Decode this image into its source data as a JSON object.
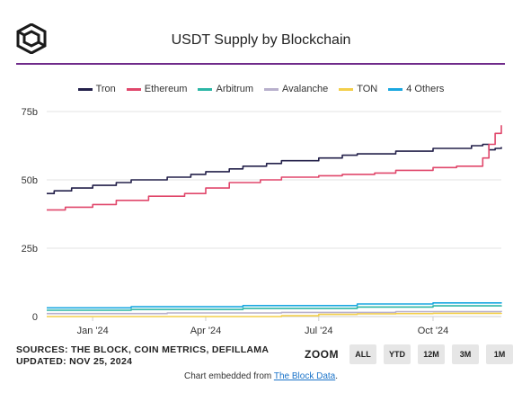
{
  "header": {
    "title": "USDT Supply by Blockchain"
  },
  "sources": {
    "line1": "SOURCES: THE BLOCK, COIN METRICS, DEFILLAMA",
    "line2": "UPDATED: NOV 25, 2024"
  },
  "zoom": {
    "label": "ZOOM",
    "buttons": [
      "ALL",
      "YTD",
      "12M",
      "3M",
      "1M"
    ]
  },
  "footer": {
    "prefix": "Chart embedded from ",
    "link": "The Block Data",
    "suffix": "."
  },
  "chart_data": {
    "type": "line",
    "title": "USDT Supply by Blockchain",
    "xlabel": "",
    "ylabel": "",
    "y_ticks": [
      "0",
      "25b",
      "50b",
      "75b"
    ],
    "y_tick_values": [
      0,
      25,
      50,
      75
    ],
    "ylim": [
      0,
      75
    ],
    "x_ticks": [
      "Jan '24",
      "Apr '24",
      "Jul '24",
      "Oct '24"
    ],
    "x_tick_dates": [
      "2024-01-01",
      "2024-04-01",
      "2024-07-01",
      "2024-10-01"
    ],
    "xlim": [
      "2023-11-25",
      "2024-11-25"
    ],
    "grid": "horizontal",
    "legend_position": "top",
    "series": [
      {
        "name": "Tron",
        "color": "#23204a",
        "x": [
          "2023-11-25",
          "2023-12-01",
          "2023-12-15",
          "2024-01-01",
          "2024-01-20",
          "2024-02-01",
          "2024-03-01",
          "2024-03-20",
          "2024-04-01",
          "2024-04-20",
          "2024-05-01",
          "2024-05-20",
          "2024-06-01",
          "2024-07-01",
          "2024-07-20",
          "2024-08-01",
          "2024-09-01",
          "2024-10-01",
          "2024-10-15",
          "2024-11-01",
          "2024-11-10",
          "2024-11-15",
          "2024-11-20",
          "2024-11-25"
        ],
        "values": [
          45,
          46,
          47,
          48,
          49,
          50,
          51,
          52,
          53,
          54,
          55,
          56,
          57,
          58,
          59,
          59.5,
          60.5,
          61.5,
          61.5,
          62.5,
          63,
          61,
          61.5,
          62
        ]
      },
      {
        "name": "Ethereum",
        "color": "#e0476b",
        "x": [
          "2023-11-25",
          "2023-12-10",
          "2024-01-01",
          "2024-01-20",
          "2024-02-15",
          "2024-03-15",
          "2024-04-01",
          "2024-04-20",
          "2024-05-15",
          "2024-06-01",
          "2024-07-01",
          "2024-07-20",
          "2024-08-15",
          "2024-09-01",
          "2024-10-01",
          "2024-10-20",
          "2024-11-01",
          "2024-11-10",
          "2024-11-15",
          "2024-11-20",
          "2024-11-25"
        ],
        "values": [
          39,
          40,
          41,
          42.5,
          44,
          45,
          47,
          49,
          50,
          51,
          51.5,
          52,
          52.5,
          53.5,
          54.5,
          55,
          55,
          58,
          63,
          67,
          70
        ]
      },
      {
        "name": "Arbitrum",
        "color": "#2cb6a6",
        "x": [
          "2023-11-25",
          "2024-02-01",
          "2024-05-01",
          "2024-08-01",
          "2024-10-01",
          "2024-11-25"
        ],
        "values": [
          2.3,
          2.6,
          3,
          3.5,
          3.9,
          4.1
        ]
      },
      {
        "name": "Avalanche",
        "color": "#b8b0cc",
        "x": [
          "2023-11-25",
          "2024-03-01",
          "2024-06-01",
          "2024-09-01",
          "2024-11-25"
        ],
        "values": [
          1.1,
          1.3,
          1.5,
          1.8,
          2.1
        ]
      },
      {
        "name": "TON",
        "color": "#f3cf4a",
        "x": [
          "2023-11-25",
          "2024-04-01",
          "2024-06-01",
          "2024-07-01",
          "2024-08-01",
          "2024-09-01",
          "2024-10-01",
          "2024-11-25"
        ],
        "values": [
          0,
          0,
          0.3,
          0.8,
          1.0,
          1.1,
          1.2,
          1.3
        ]
      },
      {
        "name": "4 Others",
        "color": "#1aa7e0",
        "x": [
          "2023-11-25",
          "2024-02-01",
          "2024-05-01",
          "2024-08-01",
          "2024-10-01",
          "2024-11-25"
        ],
        "values": [
          3.2,
          3.6,
          4.0,
          4.6,
          5.0,
          5.2
        ]
      }
    ]
  }
}
